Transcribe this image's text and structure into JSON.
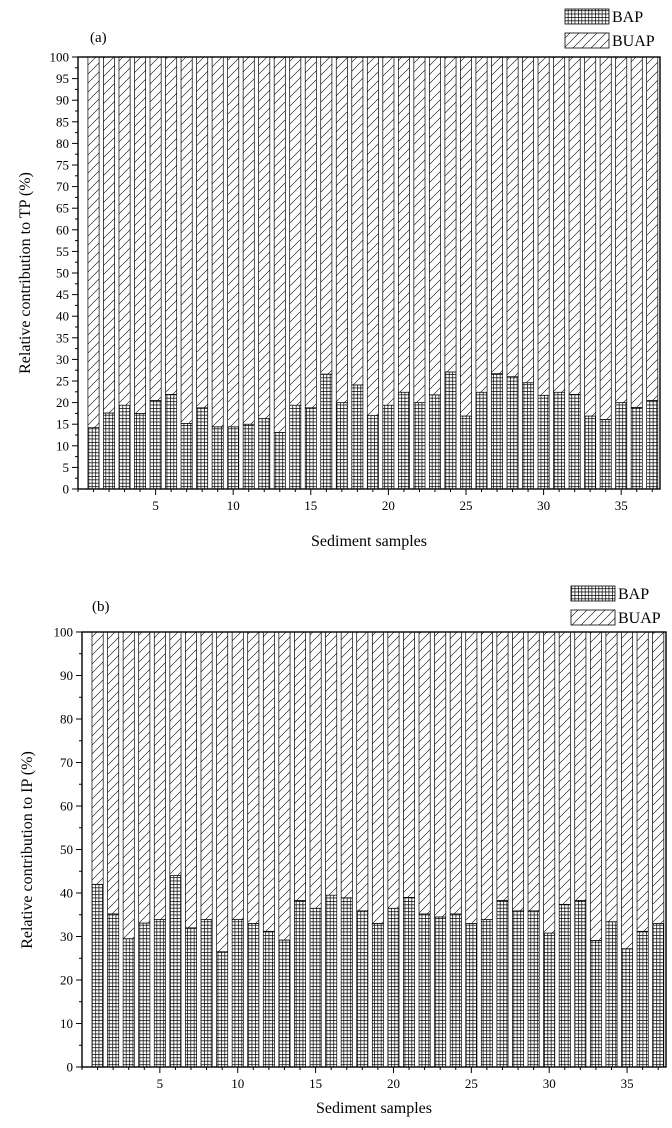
{
  "chart_data": [
    {
      "type": "bar",
      "stacked": true,
      "panel_label": "(a)",
      "xlabel": "Sediment samples",
      "ylabel": "Relative contribution to TP (%)",
      "ylim": [
        0,
        100
      ],
      "xlim": [
        0,
        37.5
      ],
      "yticks": [
        0,
        5,
        10,
        15,
        20,
        25,
        30,
        35,
        40,
        45,
        50,
        55,
        60,
        65,
        70,
        75,
        80,
        85,
        90,
        95,
        100
      ],
      "xticks": [
        5,
        10,
        15,
        20,
        25,
        30,
        35
      ],
      "x": [
        1,
        2,
        3,
        4,
        5,
        6,
        7,
        8,
        9,
        10,
        11,
        12,
        13,
        14,
        15,
        16,
        17,
        18,
        19,
        20,
        21,
        22,
        23,
        24,
        25,
        26,
        27,
        28,
        29,
        30,
        31,
        32,
        33,
        34,
        35,
        36,
        37
      ],
      "series": [
        {
          "name": "BAP",
          "pattern": "grid",
          "values": [
            14.2,
            17.6,
            19.4,
            17.5,
            20.5,
            21.9,
            15.2,
            18.8,
            14.4,
            14.4,
            15.0,
            16.3,
            13.1,
            19.4,
            18.8,
            26.6,
            20.0,
            24.1,
            17.0,
            19.4,
            22.4,
            20.0,
            21.8,
            27.1,
            16.9,
            22.4,
            26.7,
            26.0,
            24.6,
            21.7,
            22.4,
            21.9,
            16.9,
            16.1,
            20.0,
            18.9,
            20.5
          ]
        },
        {
          "name": "BUAP",
          "pattern": "diagonal",
          "values": [
            85.8,
            82.4,
            80.6,
            82.5,
            79.5,
            78.1,
            84.8,
            81.2,
            85.6,
            85.6,
            85.0,
            83.7,
            86.9,
            80.6,
            81.2,
            73.4,
            80.0,
            75.9,
            83.0,
            80.6,
            77.6,
            80.0,
            78.2,
            72.9,
            83.1,
            77.6,
            73.3,
            74.0,
            75.4,
            78.3,
            77.6,
            78.1,
            83.1,
            83.9,
            80.0,
            81.1,
            79.5
          ]
        }
      ]
    },
    {
      "type": "bar",
      "stacked": true,
      "panel_label": "(b)",
      "xlabel": "Sediment samples",
      "ylabel": "Relative contribution to IP (%)",
      "ylim": [
        0,
        100
      ],
      "xlim": [
        0,
        37.5
      ],
      "yticks": [
        0,
        10,
        20,
        30,
        40,
        50,
        60,
        70,
        80,
        90,
        100
      ],
      "xticks": [
        5,
        10,
        15,
        20,
        25,
        30,
        35
      ],
      "x": [
        1,
        2,
        3,
        4,
        5,
        6,
        7,
        8,
        9,
        10,
        11,
        12,
        13,
        14,
        15,
        16,
        17,
        18,
        19,
        20,
        21,
        22,
        23,
        24,
        25,
        26,
        27,
        28,
        29,
        30,
        31,
        32,
        33,
        34,
        35,
        36,
        37
      ],
      "series": [
        {
          "name": "BAP",
          "pattern": "grid",
          "values": [
            42.0,
            35.2,
            29.5,
            33.1,
            33.9,
            44.0,
            32.0,
            33.9,
            26.5,
            33.9,
            33.0,
            31.2,
            29.2,
            38.3,
            36.5,
            39.5,
            38.9,
            35.9,
            33.0,
            36.5,
            39.0,
            35.2,
            34.5,
            35.2,
            33.0,
            33.9,
            38.3,
            35.9,
            35.9,
            30.8,
            37.4,
            38.3,
            29.1,
            33.4,
            27.2,
            31.2,
            33.0
          ]
        },
        {
          "name": "BUAP",
          "pattern": "diagonal",
          "values": [
            58.0,
            64.8,
            70.5,
            66.9,
            66.1,
            56.0,
            68.0,
            66.1,
            73.5,
            66.1,
            67.0,
            68.8,
            70.8,
            61.7,
            63.5,
            60.5,
            61.1,
            64.1,
            67.0,
            63.5,
            61.0,
            64.8,
            65.5,
            64.8,
            67.0,
            66.1,
            61.7,
            64.1,
            64.1,
            69.2,
            62.6,
            61.7,
            70.9,
            66.6,
            72.8,
            68.8,
            67.0
          ]
        }
      ]
    }
  ]
}
